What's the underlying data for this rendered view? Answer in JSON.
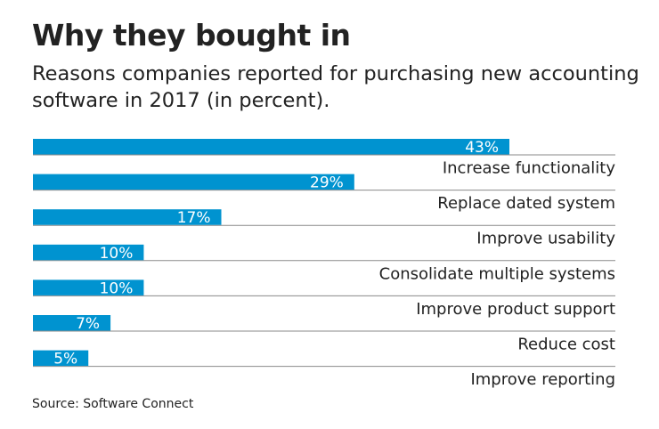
{
  "chart_data": {
    "type": "bar",
    "orientation": "horizontal",
    "title": "Why they bought in",
    "subtitle": "Reasons companies reported for purchasing new accounting software in 2017 (in percent).",
    "categories": [
      "Increase functionality",
      "Replace dated system",
      "Improve usability",
      "Consolidate multiple systems",
      "Improve product support",
      "Reduce cost",
      "Improve reporting"
    ],
    "values": [
      43,
      29,
      17,
      10,
      10,
      7,
      5
    ],
    "data_labels": [
      "43%",
      "29%",
      "17%",
      "10%",
      "10%",
      "7%",
      "5%"
    ],
    "xlim": [
      0,
      43
    ],
    "grid": false,
    "legend": "none",
    "source": "Source: Software Connect",
    "colors": {
      "bar": "#0093d0",
      "label_in_bar": "#ffffff",
      "divider": "#8a8a8a"
    }
  }
}
